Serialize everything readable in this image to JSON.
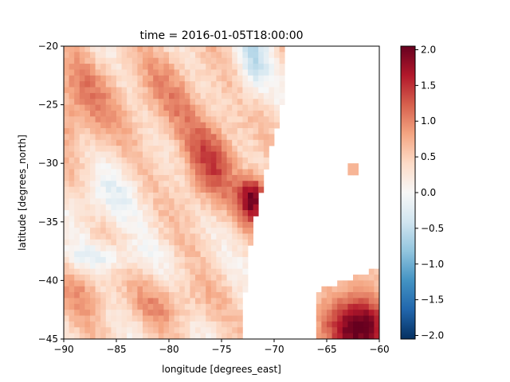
{
  "chart_data": {
    "type": "heatmap",
    "title": "time = 2016-01-05T18:00:00",
    "xlabel": "longitude [degrees_east]",
    "ylabel": "latitude [degrees_north]",
    "xlim": [
      -90,
      -60
    ],
    "ylim": [
      -45,
      -20
    ],
    "x_ticks": [
      -90,
      -85,
      -80,
      -75,
      -70,
      -65,
      -60
    ],
    "x_tick_labels": [
      "−90",
      "−85",
      "−80",
      "−75",
      "−70",
      "−65",
      "−60"
    ],
    "y_ticks": [
      -20,
      -25,
      -30,
      -35,
      -40,
      -45
    ],
    "y_tick_labels": [
      "−20",
      "−25",
      "−30",
      "−35",
      "−40",
      "−45"
    ],
    "colorbar": {
      "colormap": "RdBu_r",
      "vmin": -2.05,
      "vmax": 2.05,
      "ticks": [
        2.0,
        1.5,
        1.0,
        0.5,
        0.0,
        -0.5,
        -1.0,
        -1.5,
        -2.0
      ],
      "tick_labels": [
        "2.0",
        "1.5",
        "1.0",
        "0.5",
        "0.0",
        "−0.5",
        "−1.0",
        "−1.5",
        "−2.0"
      ],
      "colors": [
        "#053061",
        "#2166ac",
        "#4393c3",
        "#92c5de",
        "#d1e5f0",
        "#f7f7f7",
        "#fddbc7",
        "#f4a582",
        "#d6604d",
        "#b2182b",
        "#67001f"
      ]
    },
    "grid": false,
    "legend": "none",
    "cell_size_deg": 0.5,
    "field_regions": [
      {
        "name": "background",
        "value": 0.35
      },
      {
        "name": "western-warm",
        "lon": -89,
        "lat": -25,
        "value": 1.0
      },
      {
        "name": "central-warm",
        "lon": -80,
        "lat": -24,
        "value": 0.8
      },
      {
        "name": "coastal-core",
        "lon": -76,
        "lat": -30,
        "value": 1.2
      },
      {
        "name": "coastal-maximum",
        "lon": -72,
        "lat": -33,
        "value": 2.0
      },
      {
        "name": "west-cool-zone",
        "lon": -86,
        "lat": -33,
        "value": -0.05
      },
      {
        "name": "west-cool-band",
        "lon": -86,
        "lat": -38,
        "value": -0.2
      },
      {
        "name": "southwest-warm",
        "lon": -88,
        "lat": -41,
        "value": 0.8
      },
      {
        "name": "south-warm",
        "lon": -80,
        "lat": -42,
        "value": 0.8
      },
      {
        "name": "north-coast-cool",
        "lon": -72,
        "lat": -21,
        "value": -0.4
      },
      {
        "name": "southeast-corner",
        "lon": -62,
        "lat": -44,
        "value": 1.6
      },
      {
        "name": "isolated-patch",
        "lon": -62.5,
        "lat": -30.5,
        "value": 0.7
      }
    ],
    "masked_region": "land and missing data (white)"
  }
}
